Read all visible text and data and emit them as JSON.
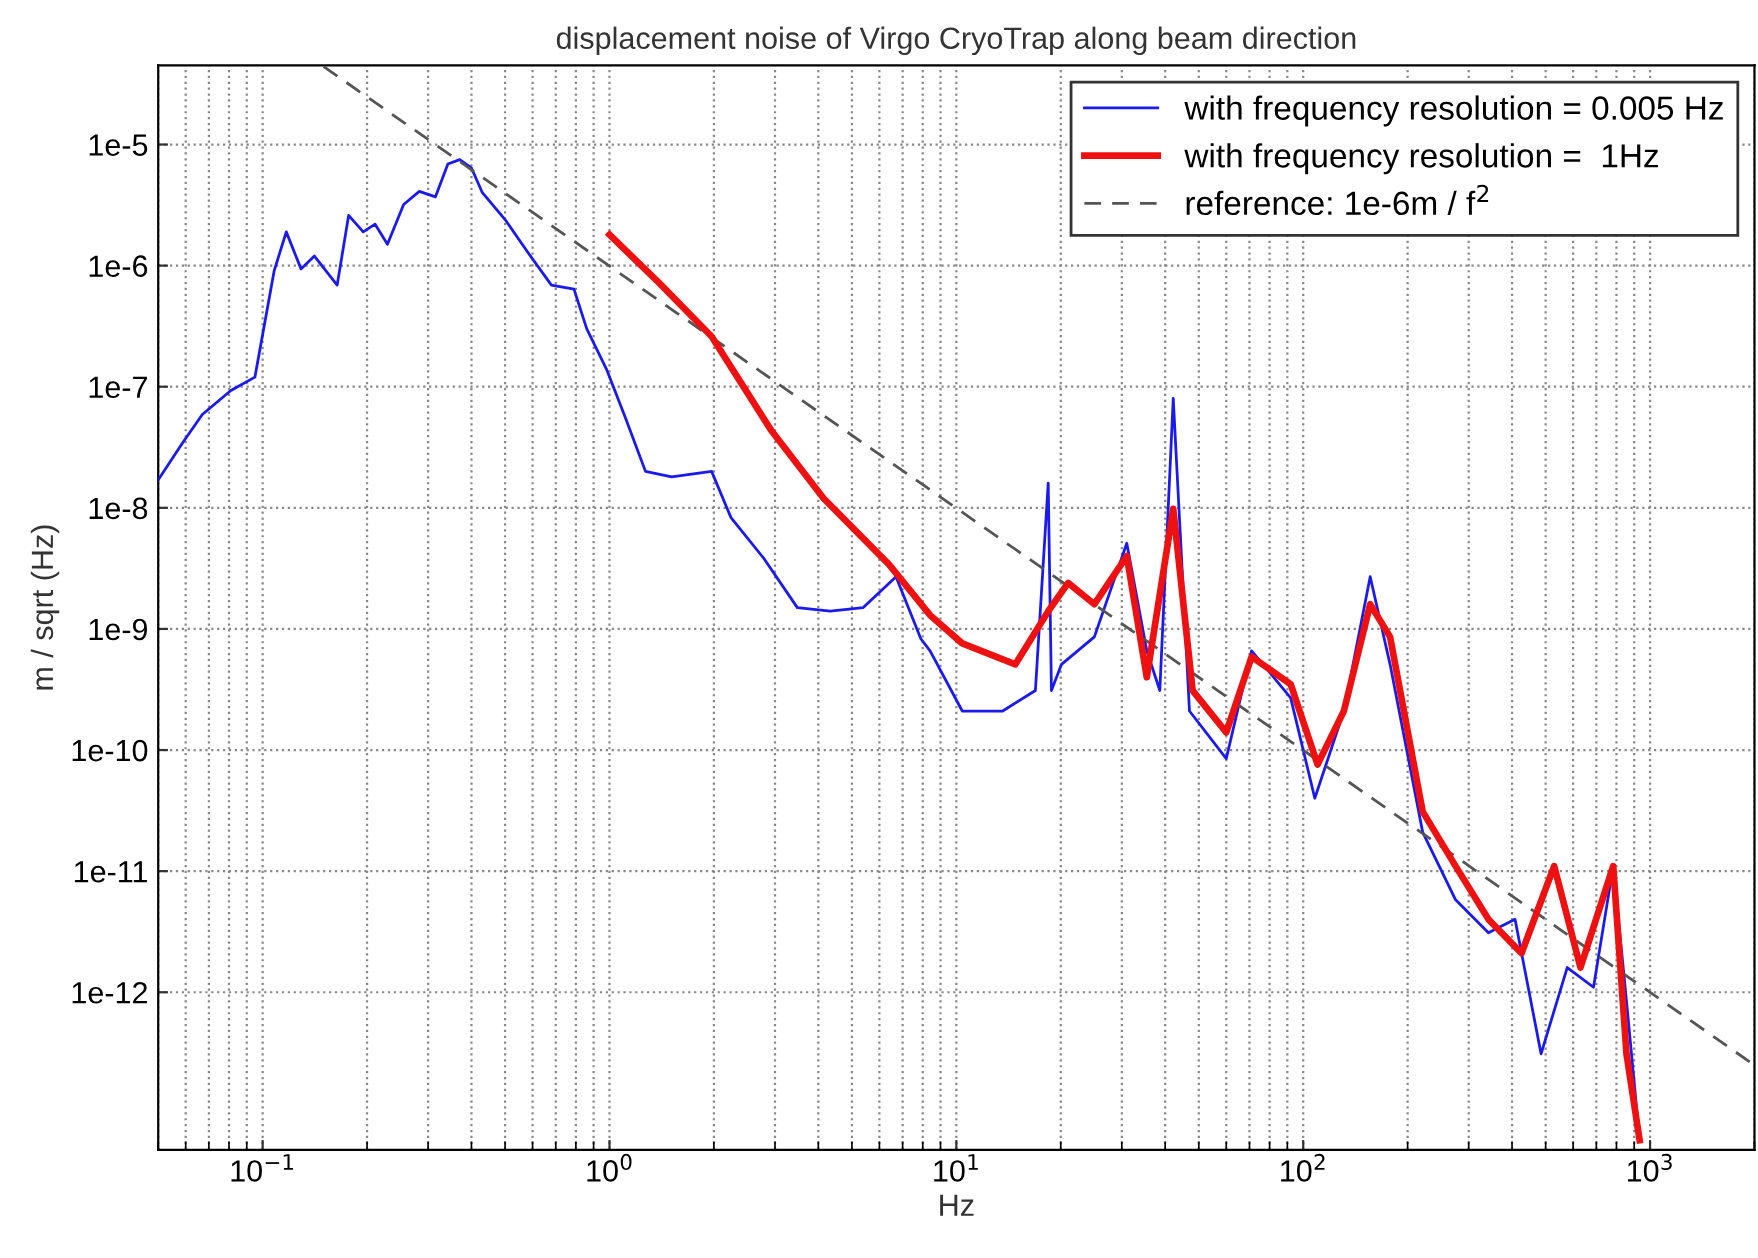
{
  "chart_data": {
    "type": "line",
    "title": "displacement noise of Virgo CryoTrap along beam direction",
    "xlabel": "Hz",
    "ylabel": "m / sqrt (Hz)",
    "log": "xy",
    "grid": true,
    "legend": "top right",
    "marker": "none",
    "xlim": [
      0.05,
      2000
    ],
    "ylim": [
      5e-14,
      4.5e-05
    ],
    "xticks": [
      {
        "value": 0.1,
        "label": "10$^{−1}$"
      },
      {
        "value": 1,
        "label": "10$^{0}$"
      },
      {
        "value": 10,
        "label": "10$^{1}$"
      },
      {
        "value": 100,
        "label": "10$^{2}$"
      },
      {
        "value": 1000,
        "label": "10$^{3}$"
      }
    ],
    "yticks": [
      {
        "value": 1e-12,
        "label": "1e-12"
      },
      {
        "value": 1e-11,
        "label": "1e-11"
      },
      {
        "value": 1e-10,
        "label": "1e-10"
      },
      {
        "value": 1e-09,
        "label": "1e-9"
      },
      {
        "value": 1e-08,
        "label": "1e-8"
      },
      {
        "value": 1e-07,
        "label": "1e-7"
      },
      {
        "value": 1e-06,
        "label": "1e-6"
      },
      {
        "value": 1e-05,
        "label": "1e-5"
      }
    ],
    "series": [
      {
        "name": "with frequency resolution = 0.005 Hz",
        "color": "#1a1aee",
        "line_style": "solid",
        "x": [
          0.05,
          0.059,
          0.067,
          0.081,
          0.095,
          0.108,
          0.117,
          0.129,
          0.141,
          0.164,
          0.177,
          0.195,
          0.211,
          0.229,
          0.255,
          0.283,
          0.315,
          0.342,
          0.37,
          0.4,
          0.43,
          0.5,
          0.58,
          0.68,
          0.79,
          0.86,
          0.98,
          1.11,
          1.27,
          1.51,
          1.97,
          2.24,
          2.79,
          3.48,
          4.33,
          5.39,
          6.7,
          7.9,
          8.4,
          10.4,
          13.6,
          16.9,
          18.4,
          18.8,
          20.1,
          25,
          31,
          35.4,
          38.6,
          42.2,
          47,
          60,
          71,
          92,
          108,
          131,
          156,
          178,
          221,
          275,
          342,
          408,
          485,
          577,
          687,
          783,
          855,
          933
        ],
        "values": [
          1.7e-08,
          3.5e-08,
          5.9e-08,
          9.3e-08,
          1.2e-07,
          9.1e-07,
          1.9e-06,
          9.4e-07,
          1.2e-06,
          6.9e-07,
          2.6e-06,
          1.9e-06,
          2.2e-06,
          1.5e-06,
          3.2e-06,
          4.1e-06,
          3.7e-06,
          6.9e-06,
          7.5e-06,
          6.4e-06,
          4e-06,
          2.4e-06,
          1.3e-06,
          6.9e-07,
          6.4e-07,
          3e-07,
          1.4e-07,
          5.6e-08,
          2e-08,
          1.8e-08,
          2e-08,
          8.3e-09,
          3.8e-09,
          1.5e-09,
          1.4e-09,
          1.5e-09,
          2.7e-09,
          8.3e-10,
          6.6e-10,
          2.1e-10,
          2.1e-10,
          3.1e-10,
          1.6e-08,
          3.1e-10,
          5.1e-10,
          8.6e-10,
          5.1e-09,
          6.6e-10,
          3.1e-10,
          8e-08,
          2.1e-10,
          8.5e-11,
          6.6e-10,
          2.7e-10,
          4e-11,
          2.1e-10,
          2.7e-09,
          5.1e-10,
          2.1e-11,
          5.8e-12,
          3.1e-12,
          4e-12,
          3.1e-13,
          1.6e-12,
          1.1e-12,
          1.1e-11,
          8.5e-13,
          6e-14
        ]
      },
      {
        "name": "with frequency resolution =  1Hz",
        "color": "#ee1111",
        "line_style": "solid",
        "x": [
          1,
          1.39,
          1.97,
          2.92,
          4.14,
          6.4,
          8.4,
          10.4,
          14.8,
          18.4,
          21,
          25,
          31,
          35.4,
          42.2,
          48,
          60,
          71,
          92,
          110,
          131,
          156,
          178,
          221,
          275,
          342,
          426,
          529,
          630,
          783,
          855,
          933
        ],
        "values": [
          1.8e-06,
          7.2e-07,
          2.6e-07,
          4.4e-08,
          1.2e-08,
          3.4e-09,
          1.3e-09,
          7.6e-10,
          5.1e-10,
          1.4e-09,
          2.4e-09,
          1.6e-09,
          4e-09,
          4e-10,
          9.8e-09,
          3.1e-10,
          1.4e-10,
          5.9e-10,
          3.5e-10,
          7.6e-11,
          2.1e-10,
          1.6e-09,
          8.6e-10,
          3.1e-11,
          1.1e-11,
          4e-12,
          2.1e-12,
          1.1e-11,
          1.6e-12,
          1.1e-11,
          3.1e-13,
          6e-14
        ]
      },
      {
        "name": "reference: 1e-6m / f$^{2}$",
        "color": "#555555",
        "line_style": "dashed",
        "x": [
          0.15,
          2000
        ],
        "values": [
          4.4e-05,
          2.5e-13
        ]
      }
    ]
  }
}
